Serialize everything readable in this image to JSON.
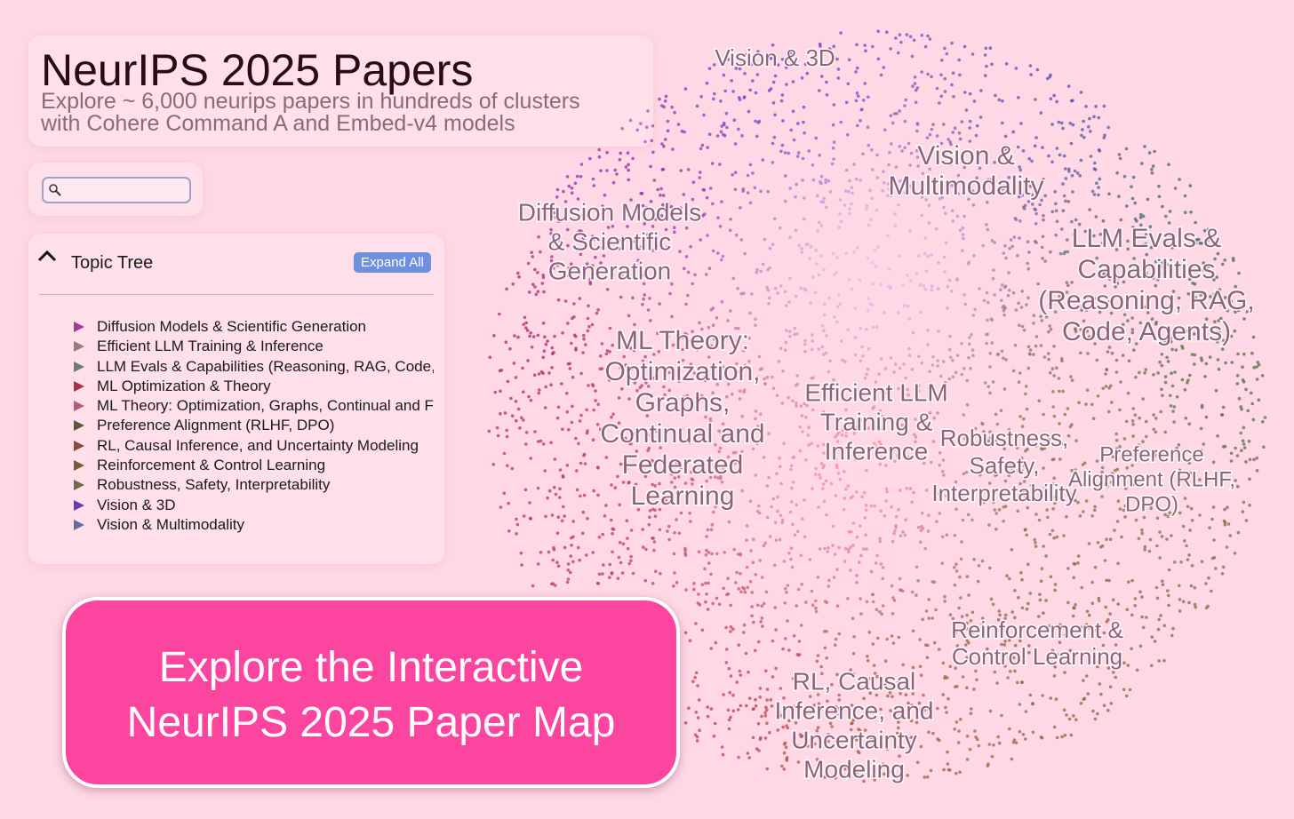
{
  "header": {
    "title": "NeurIPS 2025 Papers",
    "subtitle_lines": [
      "Explore ~ 6,000 neurips papers in hundreds of clusters",
      "with Cohere Command A and Embed-v4 models"
    ]
  },
  "topic_tree": {
    "title": "Topic Tree",
    "button": "Expand All",
    "items": [
      {
        "label": "Diffusion Models & Scientific Generation",
        "color": "#9c3f8f"
      },
      {
        "label": "Efficient LLM Training & Inference",
        "color": "#a07a78"
      },
      {
        "label": "LLM Evals & Capabilities (Reasoning, RAG, Code,",
        "color": "#6a7a7c"
      },
      {
        "label": "ML Optimization & Theory",
        "color": "#a8324c"
      },
      {
        "label": "ML Theory: Optimization, Graphs, Continual and F",
        "color": "#b35a7a"
      },
      {
        "label": "Preference Alignment (RLHF, DPO)",
        "color": "#5a5a3a"
      },
      {
        "label": "RL, Causal Inference, and Uncertainty Modeling",
        "color": "#8a4a3a"
      },
      {
        "label": "Reinforcement & Control Learning",
        "color": "#7a5a3a"
      },
      {
        "label": "Robustness, Safety, Interpretability",
        "color": "#6e6a4a"
      },
      {
        "label": "Vision & 3D",
        "color": "#6a3ab0"
      },
      {
        "label": "Vision & Multimodality",
        "color": "#6a6a9a"
      }
    ]
  },
  "map": {
    "labels": [
      [
        "Vision & 3D"
      ],
      [
        "Vision &",
        "Multimodality"
      ],
      [
        "Diffusion Models",
        "& Scientific",
        "Generation"
      ],
      [
        "LLM Evals &",
        "Capabilities",
        "(Reasoning, RAG,",
        "Code, Agents)"
      ],
      [
        "ML Theory:",
        "Optimization,",
        "Graphs,",
        "Continual and",
        "Federated",
        "Learning"
      ],
      [
        "Efficient LLM",
        "Training &",
        "Inference"
      ],
      [
        "Robustness,",
        "Safety,",
        "Interpretability"
      ],
      [
        "Preference",
        "Alignment (RLHF,",
        "DPO)"
      ],
      [
        "Reinforcement &",
        "Control Learning"
      ],
      [
        "RL, Causal",
        "Inference, and",
        "Uncertainty",
        "Modeling"
      ]
    ]
  },
  "banner": {
    "lines": [
      "Explore the Interactive",
      "NeurIPS 2025 Paper Map"
    ]
  }
}
